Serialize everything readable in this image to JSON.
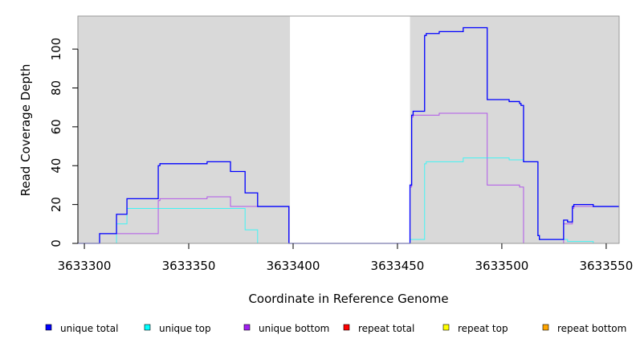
{
  "chart_data": {
    "type": "line",
    "step": true,
    "title": "",
    "xlabel": "Coordinate in Reference Genome",
    "ylabel": "Read Coverage Depth",
    "xlim": [
      3633296.9,
      3633556.2
    ],
    "ylim": [
      0,
      117
    ],
    "xticks": [
      3633300,
      3633350,
      3633400,
      3633450,
      3633500,
      3633550
    ],
    "xtick_labels": [
      "3633300",
      "3633350",
      "3633400",
      "3633450",
      "3633500",
      "3633550"
    ],
    "yticks": [
      0,
      20,
      40,
      60,
      80,
      100
    ],
    "ytick_labels": [
      "0",
      "20",
      "40",
      "60",
      "80",
      "100"
    ],
    "background_color": "#d9d9d9",
    "unshaded_region": [
      3633398.5,
      3633456
    ],
    "legend_placement": "bottom",
    "series": [
      {
        "name": "unique total",
        "color": "#0000ff",
        "points": [
          [
            3633296.9,
            0
          ],
          [
            3633307.3,
            5
          ],
          [
            3633315.4,
            15
          ],
          [
            3633320.4,
            23
          ],
          [
            3633335.4,
            40
          ],
          [
            3633336.2,
            41
          ],
          [
            3633358.8,
            42
          ],
          [
            3633370,
            37
          ],
          [
            3633377,
            26
          ],
          [
            3633383,
            19
          ],
          [
            3633398,
            0
          ],
          [
            3633456,
            30
          ],
          [
            3633456.8,
            66
          ],
          [
            3633457.5,
            68
          ],
          [
            3633463,
            107
          ],
          [
            3633463.8,
            108
          ],
          [
            3633470,
            109
          ],
          [
            3633481.5,
            111
          ],
          [
            3633493,
            74
          ],
          [
            3633503.5,
            73
          ],
          [
            3633508.5,
            72
          ],
          [
            3633509.2,
            71
          ],
          [
            3633510.4,
            42
          ],
          [
            3633517.3,
            4
          ],
          [
            3633518,
            2
          ],
          [
            3633529.6,
            12
          ],
          [
            3633531.5,
            11
          ],
          [
            3633533.8,
            19
          ],
          [
            3633534.5,
            20
          ],
          [
            3633543.8,
            19
          ],
          [
            3633556.2,
            19
          ]
        ]
      },
      {
        "name": "unique top",
        "color": "#00ffff",
        "points": [
          [
            3633296.9,
            0
          ],
          [
            3633315.4,
            10
          ],
          [
            3633320.4,
            18
          ],
          [
            3633377,
            7
          ],
          [
            3633383,
            0
          ],
          [
            3633456,
            2
          ],
          [
            3633463,
            41
          ],
          [
            3633463.8,
            42
          ],
          [
            3633481.5,
            44
          ],
          [
            3633503.5,
            43
          ],
          [
            3633510.4,
            42
          ],
          [
            3633517.3,
            4
          ],
          [
            3633518,
            2
          ],
          [
            3633531.5,
            1
          ],
          [
            3633543.8,
            0
          ],
          [
            3633556.2,
            0
          ]
        ]
      },
      {
        "name": "unique bottom",
        "color": "#a020f0",
        "points": [
          [
            3633296.9,
            0
          ],
          [
            3633307.3,
            5
          ],
          [
            3633335.4,
            22
          ],
          [
            3633336.2,
            23
          ],
          [
            3633358.8,
            24
          ],
          [
            3633370,
            19
          ],
          [
            3633398,
            0
          ],
          [
            3633456,
            29
          ],
          [
            3633456.8,
            65
          ],
          [
            3633457.5,
            66
          ],
          [
            3633470,
            67
          ],
          [
            3633493,
            30
          ],
          [
            3633508.5,
            29
          ],
          [
            3633510.4,
            0
          ],
          [
            3633529.6,
            10
          ],
          [
            3633533.8,
            18
          ],
          [
            3633534.5,
            19
          ],
          [
            3633556.2,
            19
          ]
        ]
      },
      {
        "name": "repeat total",
        "color": "#ff0000",
        "points": [
          [
            3633296.9,
            0
          ],
          [
            3633556.2,
            0
          ]
        ]
      },
      {
        "name": "repeat top",
        "color": "#ffff00",
        "points": [
          [
            3633296.9,
            0
          ],
          [
            3633556.2,
            0
          ]
        ]
      },
      {
        "name": "repeat bottom",
        "color": "#ffa500",
        "points": [
          [
            3633296.9,
            0
          ],
          [
            3633556.2,
            0
          ]
        ]
      }
    ]
  }
}
